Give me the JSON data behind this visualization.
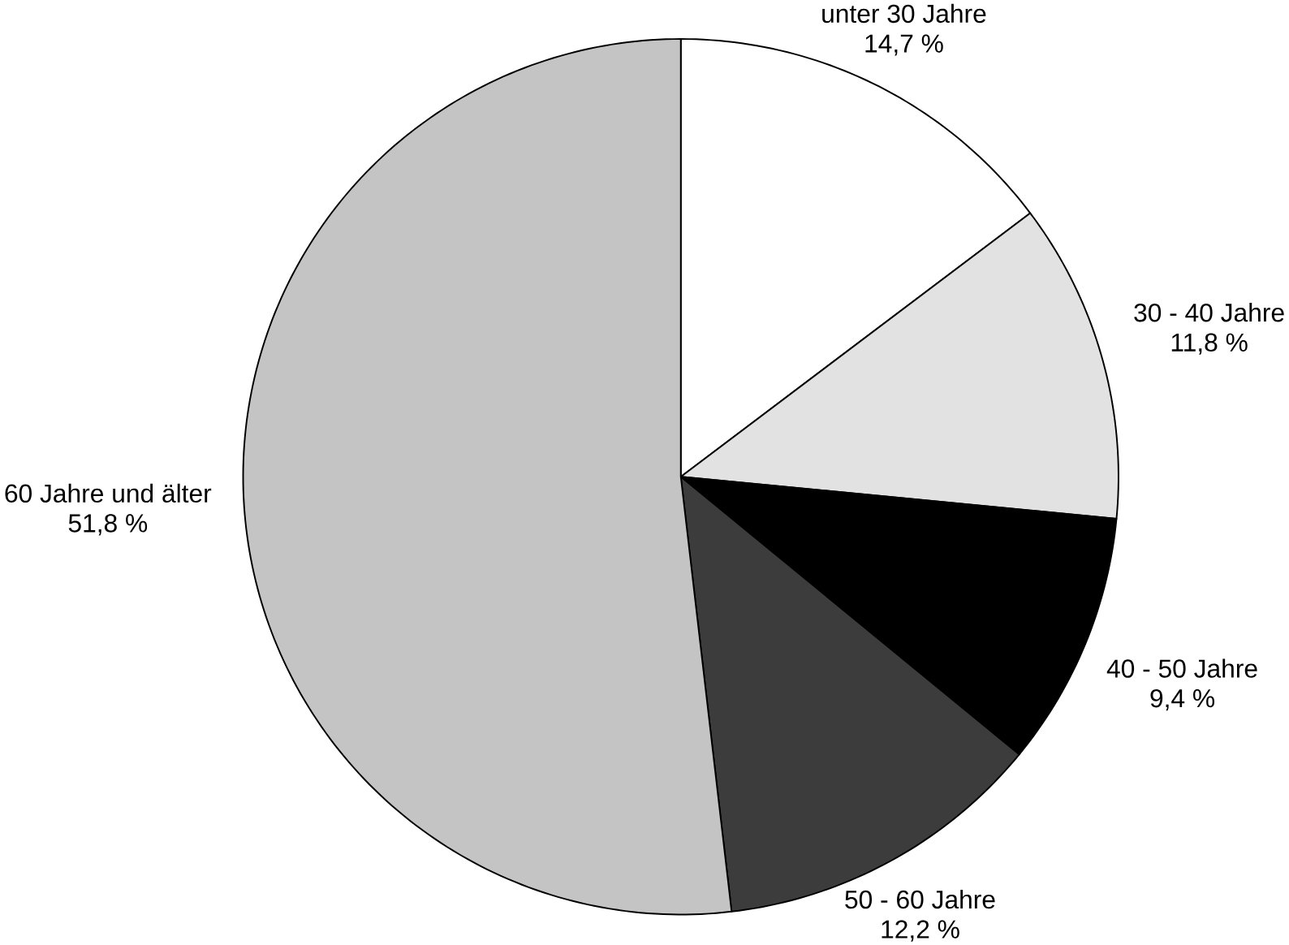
{
  "chart_data": {
    "type": "pie",
    "categories": [
      "unter 30 Jahre",
      "30 - 40 Jahre",
      "40 - 50 Jahre",
      "50 - 60 Jahre",
      "60 Jahre und älter"
    ],
    "values": [
      14.7,
      11.8,
      9.4,
      12.2,
      51.8
    ],
    "value_labels": [
      "14,7 %",
      "11,8 %",
      "9,4 %",
      "12,2 %",
      "51,8 %"
    ],
    "colors": [
      "#ffffff",
      "#e2e2e2",
      "#000000",
      "#3c3c3c",
      "#c4c4c4"
    ]
  }
}
